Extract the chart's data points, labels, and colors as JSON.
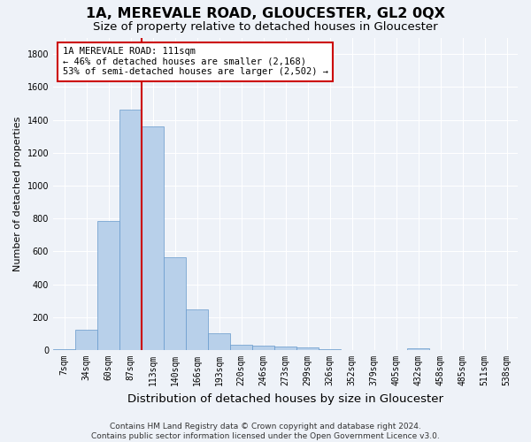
{
  "title": "1A, MEREVALE ROAD, GLOUCESTER, GL2 0QX",
  "subtitle": "Size of property relative to detached houses in Gloucester",
  "xlabel": "Distribution of detached houses by size in Gloucester",
  "ylabel": "Number of detached properties",
  "categories": [
    "7sqm",
    "34sqm",
    "60sqm",
    "87sqm",
    "113sqm",
    "140sqm",
    "166sqm",
    "193sqm",
    "220sqm",
    "246sqm",
    "273sqm",
    "299sqm",
    "326sqm",
    "352sqm",
    "379sqm",
    "405sqm",
    "432sqm",
    "458sqm",
    "485sqm",
    "511sqm",
    "538sqm"
  ],
  "values": [
    5,
    125,
    785,
    1460,
    1360,
    565,
    250,
    105,
    35,
    25,
    20,
    15,
    5,
    0,
    0,
    0,
    10,
    0,
    0,
    0,
    0
  ],
  "bar_color": "#b8d0ea",
  "bar_edge_color": "#6699cc",
  "vline_x_index": 4,
  "vline_color": "#cc0000",
  "annotation_line1": "1A MEREVALE ROAD: 111sqm",
  "annotation_line2": "← 46% of detached houses are smaller (2,168)",
  "annotation_line3": "53% of semi-detached houses are larger (2,502) →",
  "annotation_box_color": "#ffffff",
  "annotation_box_edge": "#cc0000",
  "ylim": [
    0,
    1900
  ],
  "yticks": [
    0,
    200,
    400,
    600,
    800,
    1000,
    1200,
    1400,
    1600,
    1800
  ],
  "footnote": "Contains HM Land Registry data © Crown copyright and database right 2024.\nContains public sector information licensed under the Open Government Licence v3.0.",
  "bg_color": "#eef2f8",
  "grid_color": "#ffffff",
  "title_fontsize": 11.5,
  "subtitle_fontsize": 9.5,
  "xlabel_fontsize": 9.5,
  "ylabel_fontsize": 8,
  "tick_fontsize": 7,
  "footnote_fontsize": 6.5,
  "annot_fontsize": 7.5
}
